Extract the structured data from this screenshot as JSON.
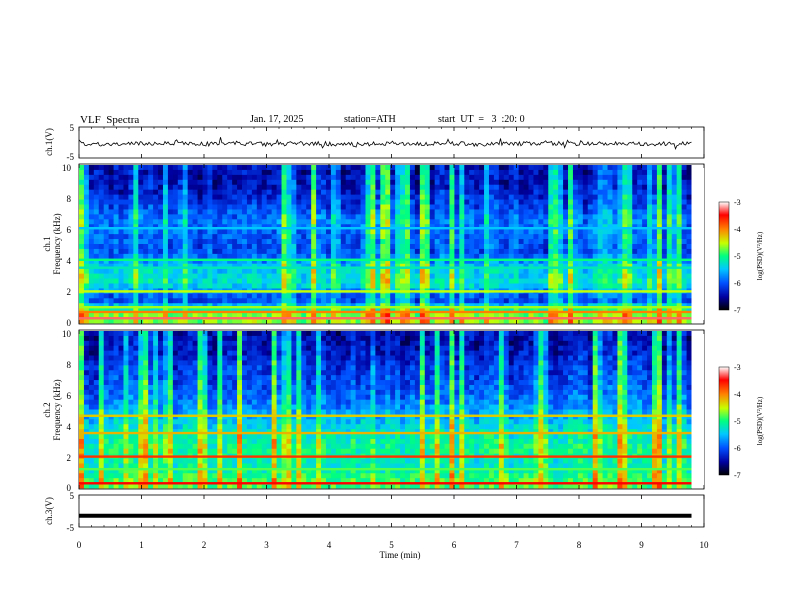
{
  "header": {
    "title": "VLF  Spectra",
    "date": "Jan. 17, 2025",
    "station": "station=ATH",
    "start": "start  UT  =   3  :20: 0"
  },
  "chart_data": [
    {
      "type": "line",
      "panel": "ch1-waveform",
      "ylabel": "ch.1(V)",
      "ylim": [
        -5,
        5
      ],
      "ytick_labels": [
        "5",
        "-5"
      ],
      "xlim": [
        0,
        10
      ],
      "trace_color": "#000000",
      "x": [
        0,
        0.5,
        1,
        1.5,
        2,
        2.5,
        3,
        3.5,
        4,
        4.5,
        5,
        5.5,
        6,
        6.5,
        7,
        7.5,
        8,
        8.5,
        9,
        9.5,
        9.8
      ],
      "y": [
        -0.3,
        -0.6,
        -0.4,
        -0.1,
        -0.5,
        -0.2,
        -0.6,
        -0.3,
        -0.4,
        -0.7,
        -0.2,
        -0.5,
        -0.3,
        -0.6,
        -0.4,
        -0.2,
        -0.5,
        -0.3,
        -0.6,
        -0.4,
        -0.5
      ]
    },
    {
      "type": "heatmap",
      "panel": "ch1-spectrogram",
      "ylabel": "ch.1\nFrequency (kHz)",
      "ylim": [
        0,
        10
      ],
      "ytick_labels": [
        "10",
        "8",
        "6",
        "4",
        "2",
        "0"
      ],
      "xlim": [
        0,
        9.8
      ],
      "colorbar": {
        "label": "log(PSD)(V²/Hz)",
        "range": [
          -7,
          -3
        ],
        "tick_labels": [
          "-3",
          "-4",
          "-5",
          "-6",
          "-7"
        ],
        "colors": [
          "#000000",
          "#0000a0",
          "#0050ff",
          "#00c8ff",
          "#00ff80",
          "#c8ff00",
          "#ff8000",
          "#ff0000",
          "#ffffff"
        ]
      },
      "bands_khz": [
        {
          "f": 0.3,
          "log_psd": -3.3
        },
        {
          "f": 0.7,
          "log_psd": -4.0
        },
        {
          "f": 1.0,
          "log_psd": -4.6
        },
        {
          "f": 2.0,
          "log_psd": -4.5
        },
        {
          "f": 3.5,
          "log_psd": -5.2
        },
        {
          "f": 4.0,
          "log_psd": -5.0
        },
        {
          "f": 6.0,
          "log_psd": -5.5
        }
      ],
      "background_log_psd_by_freq": [
        {
          "f": 0.5,
          "v": -4.8
        },
        {
          "f": 1.5,
          "v": -6.3
        },
        {
          "f": 2.5,
          "v": -5.4
        },
        {
          "f": 3.5,
          "v": -5.6
        },
        {
          "f": 4.5,
          "v": -6.2
        },
        {
          "f": 5.5,
          "v": -6.1
        },
        {
          "f": 6.5,
          "v": -6.0
        },
        {
          "f": 7.5,
          "v": -6.3
        },
        {
          "f": 8.5,
          "v": -6.5
        },
        {
          "f": 9.5,
          "v": -6.6
        }
      ]
    },
    {
      "type": "heatmap",
      "panel": "ch2-spectrogram",
      "ylabel": "ch.2\nFrequency (kHz)",
      "ylim": [
        0,
        10
      ],
      "ytick_labels": [
        "10",
        "8",
        "6",
        "4",
        "2",
        "0"
      ],
      "xlim": [
        0,
        9.8
      ],
      "colorbar": {
        "label": "log(PSD)(V²/Hz)",
        "range": [
          -7,
          -3
        ],
        "tick_labels": [
          "-3",
          "-4",
          "-5",
          "-6",
          "-7"
        ],
        "colors": [
          "#000000",
          "#0000a0",
          "#0050ff",
          "#00c8ff",
          "#00ff80",
          "#c8ff00",
          "#ff8000",
          "#ff0000",
          "#ffffff"
        ]
      },
      "bands_khz": [
        {
          "f": 0.3,
          "log_psd": -3.5
        },
        {
          "f": 2.0,
          "log_psd": -3.7
        },
        {
          "f": 3.5,
          "log_psd": -4.2
        },
        {
          "f": 4.6,
          "log_psd": -4.3
        },
        {
          "f": 1.2,
          "log_psd": -4.8
        }
      ],
      "background_log_psd_by_freq": [
        {
          "f": 0.5,
          "v": -5.0
        },
        {
          "f": 1.5,
          "v": -5.4
        },
        {
          "f": 2.5,
          "v": -5.2
        },
        {
          "f": 3.5,
          "v": -5.4
        },
        {
          "f": 4.5,
          "v": -5.7
        },
        {
          "f": 5.5,
          "v": -6.0
        },
        {
          "f": 6.5,
          "v": -6.2
        },
        {
          "f": 7.5,
          "v": -6.3
        },
        {
          "f": 8.5,
          "v": -6.5
        },
        {
          "f": 9.5,
          "v": -6.6
        }
      ]
    },
    {
      "type": "line",
      "panel": "ch3-waveform",
      "ylabel": "ch.3(V)",
      "ylim": [
        -5,
        5
      ],
      "ytick_labels": [
        "5",
        "-5"
      ],
      "xlim": [
        0,
        10
      ],
      "xlabel": "Time  (min)",
      "xtick_labels": [
        "0",
        "1",
        "2",
        "3",
        "4",
        "5",
        "6",
        "7",
        "8",
        "9",
        "10"
      ],
      "trace_color": "#000000",
      "x": [
        0,
        9.8
      ],
      "y": [
        -1.5,
        -1.5
      ]
    }
  ]
}
